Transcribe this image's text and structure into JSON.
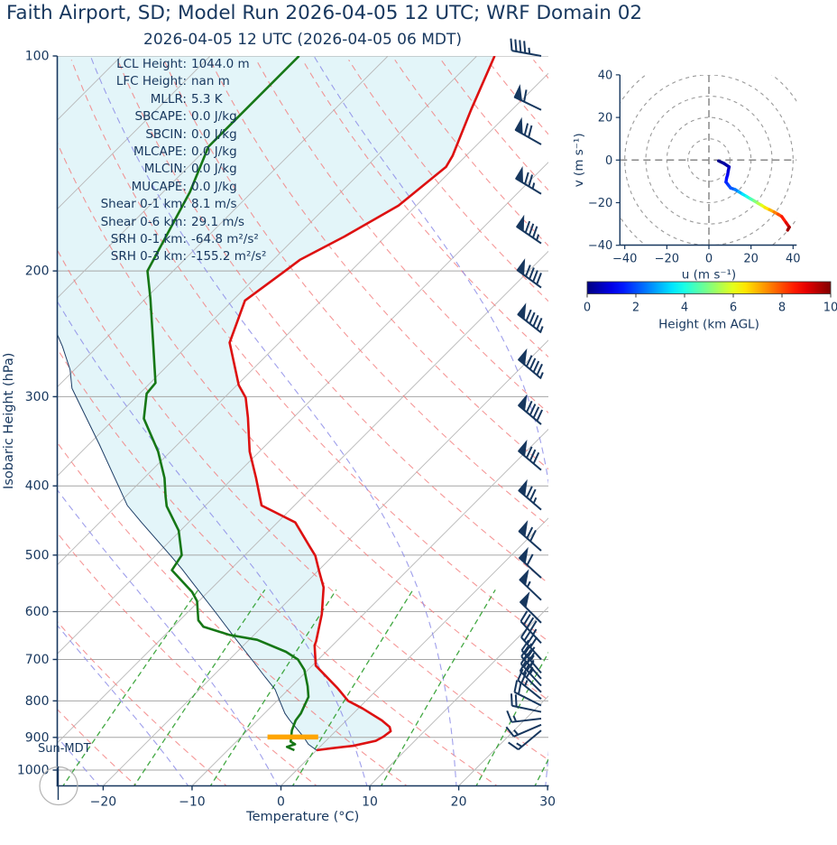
{
  "header": {
    "title": "Faith Airport, SD; Model Run 2026-04-05 12 UTC; WRF Domain 02",
    "subtitle": "2026-04-05 12 UTC  (2026-04-05 06 MDT)"
  },
  "sun_label": "Sun-MDT",
  "stats_panel": [
    {
      "label": "LCL Height:",
      "value": "1044.0 m"
    },
    {
      "label": "LFC Height:",
      "value": "nan m"
    },
    {
      "label": "MLLR:",
      "value": "5.3 K"
    },
    {
      "label": "SBCAPE:",
      "value": "0.0 J/kg"
    },
    {
      "label": "SBCIN:",
      "value": "0.0 J/kg"
    },
    {
      "label": "MLCAPE:",
      "value": "0.0 J/kg"
    },
    {
      "label": "MLCIN:",
      "value": "0.0 J/kg"
    },
    {
      "label": "MUCAPE:",
      "value": "0.0 J/kg"
    },
    {
      "label": "Shear 0-1 km:",
      "value": "8.1 m/s"
    },
    {
      "label": "Shear 0-6 km:",
      "value": "29.1 m/s"
    },
    {
      "label": "SRH 0-1 km:",
      "value": "-64.8 m²/s²"
    },
    {
      "label": "SRH 0-3 km:",
      "value": "-155.2 m²/s²"
    }
  ],
  "colors": {
    "text": "#17375e",
    "temperature": "#dd1111",
    "dewpoint": "#167716",
    "parcel": "#1d3d66",
    "isotherm": "#b8b8b8",
    "gridline": "#a6a6a6",
    "dry_adiabat": "#f27d7d",
    "moist_adiabat": "#8d8de8",
    "mixing_ratio": "#2e9e2e",
    "fill": "#daf2f7",
    "lcl": "#ffa500",
    "barb": "#17375e",
    "hodo_grid": "#999999"
  },
  "chart_data": [
    {
      "id": "skewt",
      "type": "line",
      "xlabel": "Temperature (°C)",
      "ylabel": "Isobaric Height (hPa)",
      "x_ticks": [
        -20,
        -10,
        0,
        10,
        20,
        30
      ],
      "y_ticks": [
        100,
        200,
        300,
        400,
        500,
        600,
        700,
        800,
        900,
        1000
      ],
      "xlim": [
        -25.2,
        30
      ],
      "ylim": [
        1050,
        100
      ],
      "y_scale": "log",
      "skew": "45deg",
      "isotherms": {
        "start": -110,
        "end": 40,
        "step": 10
      },
      "dry_adiabats_thetaC": [
        -30,
        -20,
        -10,
        0,
        10,
        20,
        30,
        40,
        50,
        60,
        70,
        80,
        90,
        100,
        110,
        120,
        130,
        140,
        150,
        160
      ],
      "moist_adiabats_t0C": [
        -60,
        -50,
        -40,
        -30,
        -20,
        -10,
        0,
        10,
        20,
        30
      ],
      "mixing_ratios_gkg": [
        0.5,
        1,
        2,
        4,
        8,
        16,
        24
      ],
      "series": [
        {
          "name": "temperature",
          "points": [
            [
              100,
              -58.0
            ],
            [
              119,
              -54.6
            ],
            [
              138,
              -51.5
            ],
            [
              143,
              -51.0
            ],
            [
              162,
              -52.0
            ],
            [
              179,
              -54.6
            ],
            [
              193,
              -57.0
            ],
            [
              200,
              -57.4
            ],
            [
              220,
              -58.6
            ],
            [
              252,
              -55.6
            ],
            [
              289,
              -49.8
            ],
            [
              301,
              -47.6
            ],
            [
              321,
              -45.1
            ],
            [
              358,
              -41.1
            ],
            [
              390,
              -37.4
            ],
            [
              426,
              -33.7
            ],
            [
              450,
              -28.0
            ],
            [
              487,
              -23.6
            ],
            [
              501,
              -22.0
            ],
            [
              527,
              -19.8
            ],
            [
              555,
              -17.5
            ],
            [
              605,
              -14.7
            ],
            [
              660,
              -12.3
            ],
            [
              669,
              -12.0
            ],
            [
              714,
              -9.6
            ],
            [
              768,
              -4.6
            ],
            [
              800,
              -2.0
            ],
            [
              820,
              0.5
            ],
            [
              852,
              4.0
            ],
            [
              870,
              5.6
            ],
            [
              882,
              6.2
            ],
            [
              898,
              6.0
            ],
            [
              910,
              5.6
            ],
            [
              925,
              3.6
            ],
            [
              932,
              1.5
            ],
            [
              938,
              0.0
            ]
          ]
        },
        {
          "name": "dewpoint",
          "points": [
            [
              100,
              -80.0
            ],
            [
              134,
              -80.0
            ],
            [
              155,
              -77.0
            ],
            [
              200,
              -72.9
            ],
            [
              219,
              -69.4
            ],
            [
              250,
              -64.5
            ],
            [
              287,
              -59.4
            ],
            [
              297,
              -59.2
            ],
            [
              322,
              -56.7
            ],
            [
              358,
              -51.4
            ],
            [
              390,
              -47.7
            ],
            [
              414,
              -45.5
            ],
            [
              427,
              -44.3
            ],
            [
              462,
              -40.2
            ],
            [
              500,
              -37.1
            ],
            [
              525,
              -36.5
            ],
            [
              563,
              -31.8
            ],
            [
              580,
              -30.2
            ],
            [
              617,
              -27.9
            ],
            [
              630,
              -26.6
            ],
            [
              647,
              -22.7
            ],
            [
              657,
              -19.1
            ],
            [
              683,
              -14.5
            ],
            [
              700,
              -12.3
            ],
            [
              724,
              -10.4
            ],
            [
              763,
              -8.2
            ],
            [
              790,
              -6.9
            ],
            [
              833,
              -5.9
            ],
            [
              852,
              -5.7
            ],
            [
              880,
              -5.0
            ],
            [
              903,
              -4.2
            ],
            [
              912,
              -3.9
            ],
            [
              920,
              -3.1
            ],
            [
              928,
              -3.7
            ],
            [
              938,
              -2.5
            ]
          ]
        },
        {
          "name": "parcel",
          "points": [
            [
              245,
              -76.0
            ],
            [
              255,
              -74.0
            ],
            [
              275,
              -70.5
            ],
            [
              292,
              -68.2
            ],
            [
              300,
              -66.8
            ],
            [
              350,
              -58.8
            ],
            [
              400,
              -52.0
            ],
            [
              426,
              -48.8
            ],
            [
              450,
              -45.3
            ],
            [
              500,
              -38.4
            ],
            [
              523,
              -35.5
            ],
            [
              550,
              -32.4
            ],
            [
              600,
              -27.0
            ],
            [
              650,
              -22.1
            ],
            [
              700,
              -17.5
            ],
            [
              741,
              -14.0
            ],
            [
              771,
              -11.5
            ],
            [
              800,
              -9.7
            ],
            [
              833,
              -7.7
            ],
            [
              850,
              -6.5
            ],
            [
              898,
              -3.0
            ],
            [
              920,
              -1.6
            ],
            [
              938,
              0.0
            ]
          ]
        }
      ],
      "lcl_marker": {
        "pressure_hPa": 899,
        "temp_range_C": [
          -7.0,
          -1.3
        ]
      },
      "wind_barbs": {
        "units": "m/s",
        "levels": [
          [
            100,
            22,
            -4
          ],
          [
            119,
            27,
            -13
          ],
          [
            133,
            30,
            -17
          ],
          [
            156,
            33,
            -20
          ],
          [
            183,
            35,
            -24
          ],
          [
            211,
            37,
            -27
          ],
          [
            244,
            37,
            -29
          ],
          [
            283,
            37,
            -31
          ],
          [
            328,
            34.5,
            -29
          ],
          [
            380,
            31.5,
            -26.5
          ],
          [
            432,
            28.5,
            -24.5
          ],
          [
            493,
            25.5,
            -22.5
          ],
          [
            538,
            23,
            -21
          ],
          [
            578,
            20.5,
            -19.5
          ],
          [
            622,
            18,
            -18
          ],
          [
            664,
            15.5,
            -16.5
          ],
          [
            700,
            13.5,
            -15
          ],
          [
            731,
            12,
            -14
          ],
          [
            745,
            11.5,
            -13
          ],
          [
            762,
            11,
            -12
          ],
          [
            778,
            10.5,
            -10.5
          ],
          [
            795,
            10,
            -8
          ],
          [
            812,
            10,
            -5
          ],
          [
            829,
            9.5,
            -2
          ],
          [
            847,
            8.5,
            1
          ],
          [
            864,
            7,
            3
          ],
          [
            880,
            6,
            5
          ]
        ]
      }
    },
    {
      "id": "hodograph",
      "type": "line",
      "xlabel": "u (m s⁻¹)",
      "ylabel": "v (m s⁻¹)",
      "x_ticks": [
        -40,
        -20,
        0,
        20,
        40
      ],
      "y_ticks": [
        -40,
        -20,
        0,
        20,
        40
      ],
      "xlim": [
        -42,
        42
      ],
      "ylim": [
        -42,
        42
      ],
      "ring_radii": [
        10,
        20,
        30,
        40,
        50
      ],
      "trace_height_km_u_v": [
        [
          0,
          4.6,
          -0.4
        ],
        [
          0.25,
          7,
          -1.5
        ],
        [
          0.5,
          9.6,
          -3.2
        ],
        [
          0.75,
          9.2,
          -5
        ],
        [
          1,
          8.9,
          -6.8
        ],
        [
          1.25,
          8.4,
          -8.5
        ],
        [
          1.5,
          8.1,
          -10.3
        ],
        [
          1.75,
          9.2,
          -11.7
        ],
        [
          2,
          10.3,
          -13.1
        ],
        [
          2.25,
          12.4,
          -13.8
        ],
        [
          2.75,
          14.2,
          -14.9
        ],
        [
          3.25,
          16,
          -16
        ],
        [
          3.75,
          17.8,
          -17
        ],
        [
          4.25,
          19.6,
          -18.1
        ],
        [
          4.75,
          21.4,
          -19.1
        ],
        [
          5.25,
          23.2,
          -20.2
        ],
        [
          5.75,
          25,
          -21.2
        ],
        [
          6.25,
          26.7,
          -22.3
        ],
        [
          6.75,
          28.8,
          -23.3
        ],
        [
          7.25,
          31,
          -24.4
        ],
        [
          7.75,
          32.8,
          -25.4
        ],
        [
          8.25,
          34.6,
          -26.5
        ],
        [
          8.75,
          36.7,
          -29.4
        ],
        [
          9.4,
          38.2,
          -31.5
        ],
        [
          10,
          37.4,
          -32.9
        ]
      ]
    },
    {
      "id": "height-colorbar",
      "type": "colorbar",
      "label": "Height (km AGL)",
      "ticks": [
        0,
        2,
        4,
        6,
        8,
        10
      ],
      "range": [
        0,
        10
      ],
      "cmap": "jet"
    }
  ]
}
